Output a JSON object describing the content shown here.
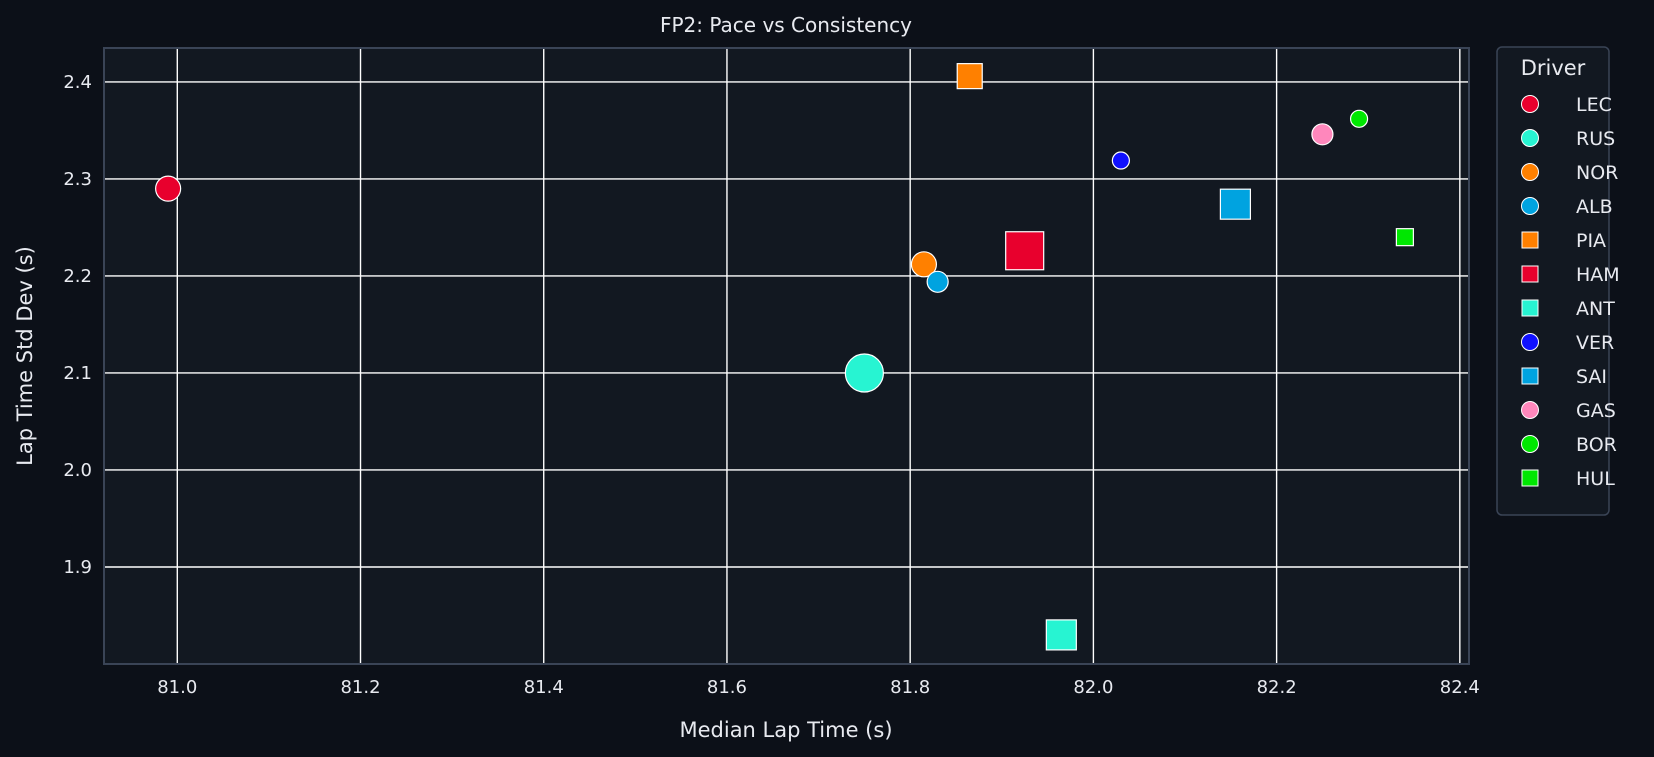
{
  "chart_data": {
    "type": "scatter",
    "title": "FP2: Pace vs Consistency",
    "xlabel": "Median Lap Time (s)",
    "ylabel": "Lap Time Std Dev (s)",
    "xlim": [
      80.92,
      82.41
    ],
    "ylim": [
      1.8,
      2.435
    ],
    "xticks": [
      "81.0",
      "81.2",
      "81.4",
      "81.6",
      "81.8",
      "82.0",
      "82.2",
      "82.4"
    ],
    "yticks": [
      "1.9",
      "2.0",
      "2.1",
      "2.2",
      "2.3",
      "2.4"
    ],
    "grid": true,
    "legend": {
      "title": "Driver",
      "placement": "outside-right"
    },
    "colors": {
      "background": "#0c1018",
      "plot_bg": "#121821",
      "grid": "#ffffff",
      "spine": "#3a4456"
    },
    "series": [
      {
        "name": "LEC",
        "marker": "circle",
        "color": "#e8002d",
        "x": 80.99,
        "y": 2.29,
        "size": 2
      },
      {
        "name": "RUS",
        "marker": "circle",
        "color": "#27f4d2",
        "x": 81.75,
        "y": 2.1,
        "size": 4
      },
      {
        "name": "NOR",
        "marker": "circle",
        "color": "#ff8000",
        "x": 81.815,
        "y": 2.212,
        "size": 2
      },
      {
        "name": "ALB",
        "marker": "circle",
        "color": "#00a3e0",
        "x": 81.83,
        "y": 2.194,
        "size": 1
      },
      {
        "name": "PIA",
        "marker": "square",
        "color": "#ff8000",
        "x": 81.865,
        "y": 2.406,
        "size": 2
      },
      {
        "name": "HAM",
        "marker": "square",
        "color": "#e8002d",
        "x": 81.925,
        "y": 2.226,
        "size": 4
      },
      {
        "name": "ANT",
        "marker": "square",
        "color": "#27f4d2",
        "x": 81.965,
        "y": 1.83,
        "size": 3
      },
      {
        "name": "VER",
        "marker": "circle",
        "color": "#1010ff",
        "x": 82.03,
        "y": 2.319,
        "size": 0
      },
      {
        "name": "SAI",
        "marker": "square",
        "color": "#00a3e0",
        "x": 82.155,
        "y": 2.274,
        "size": 3
      },
      {
        "name": "GAS",
        "marker": "circle",
        "color": "#ff87bc",
        "x": 82.25,
        "y": 2.346,
        "size": 1
      },
      {
        "name": "BOR",
        "marker": "circle",
        "color": "#00e701",
        "x": 82.29,
        "y": 2.362,
        "size": 0
      },
      {
        "name": "HUL",
        "marker": "square",
        "color": "#00e701",
        "x": 82.34,
        "y": 2.24,
        "size": 0
      }
    ]
  }
}
